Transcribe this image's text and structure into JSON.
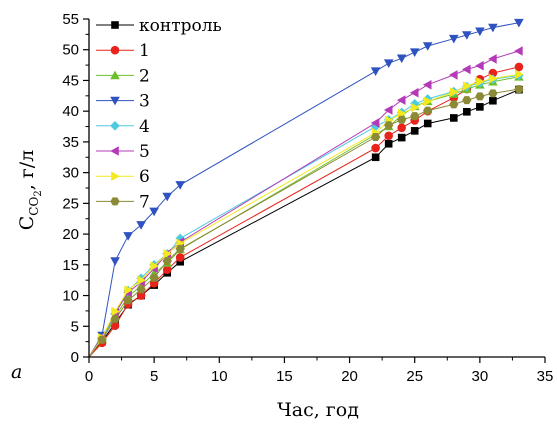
{
  "panel_label": "a",
  "chart_data": {
    "type": "line",
    "title": "",
    "xlabel": "Час, год",
    "ylabel_main": "C",
    "ylabel_sub": "CO",
    "ylabel_subsub": "2",
    "ylabel_rest": ", г/л",
    "xlim": [
      0,
      35
    ],
    "ylim": [
      0,
      55
    ],
    "x_ticks": [
      0,
      5,
      10,
      15,
      20,
      25,
      30,
      35
    ],
    "y_ticks": [
      0,
      5,
      10,
      15,
      20,
      25,
      30,
      35,
      40,
      45,
      50,
      55
    ],
    "grid": false,
    "legend_position": "top-left",
    "x": [
      0,
      1,
      2,
      3,
      4,
      5,
      6,
      7,
      22,
      23,
      24,
      25,
      26,
      28,
      29,
      30,
      31,
      33
    ],
    "series": [
      {
        "name": "контроль",
        "color": "#000000",
        "marker": "square",
        "values": [
          0,
          2.5,
          5.5,
          8.5,
          10,
          11.7,
          13.7,
          15.5,
          32.5,
          34.7,
          35.7,
          36.8,
          38,
          38.9,
          39.9,
          40.7,
          41.7,
          43.5
        ]
      },
      {
        "name": "1",
        "color": "#e8231c",
        "marker": "circle",
        "values": [
          0,
          2.3,
          5.1,
          8.6,
          10,
          12,
          14.2,
          16.2,
          34,
          36,
          37.3,
          38.5,
          40,
          42.2,
          43.6,
          45.2,
          46.2,
          47.2
        ]
      },
      {
        "name": "2",
        "color": "#6dbf2a",
        "marker": "triangle-up",
        "values": [
          0,
          3,
          6.6,
          9.8,
          11.6,
          13.6,
          15.3,
          17.5,
          36.2,
          37.5,
          39.3,
          40.8,
          41.6,
          42.8,
          43.6,
          44.3,
          44.8,
          45.6
        ]
      },
      {
        "name": "3",
        "color": "#2e52c0",
        "marker": "triangle-down",
        "values": [
          0,
          3.5,
          15.6,
          19.7,
          21.5,
          23.7,
          26.1,
          28,
          46.5,
          47.8,
          48.6,
          49.6,
          50.6,
          51.8,
          52.4,
          53,
          53.6,
          54.4
        ]
      },
      {
        "name": "4",
        "color": "#4fcbe0",
        "marker": "diamond",
        "values": [
          0,
          3,
          7,
          10.8,
          12.8,
          15,
          16.8,
          19.3,
          37.5,
          38.6,
          39.8,
          41.2,
          42,
          43.2,
          44,
          44.6,
          45.2,
          45.8
        ]
      },
      {
        "name": "5",
        "color": "#b43ab8",
        "marker": "triangle-left",
        "values": [
          0,
          3.2,
          7.1,
          10.5,
          12.2,
          14.4,
          16.8,
          18.7,
          38.1,
          40.2,
          41.8,
          43,
          44.3,
          45.9,
          46.8,
          47.4,
          48.5,
          49.8
        ]
      },
      {
        "name": "6",
        "color": "#f2ea1f",
        "marker": "triangle-right",
        "values": [
          0,
          3.1,
          7.4,
          10.9,
          12.5,
          14.8,
          16.8,
          18.5,
          36.5,
          38.5,
          39.6,
          40.6,
          41.6,
          43.1,
          44.1,
          44.8,
          45.3,
          46
        ]
      },
      {
        "name": "7",
        "color": "#8b8a36",
        "marker": "hexagon",
        "values": [
          0,
          2.8,
          6.2,
          9.2,
          11,
          12.9,
          15.6,
          17.6,
          35.8,
          37.7,
          38.6,
          39.2,
          40.1,
          41.1,
          41.8,
          42.4,
          42.9,
          43.6
        ]
      }
    ]
  }
}
